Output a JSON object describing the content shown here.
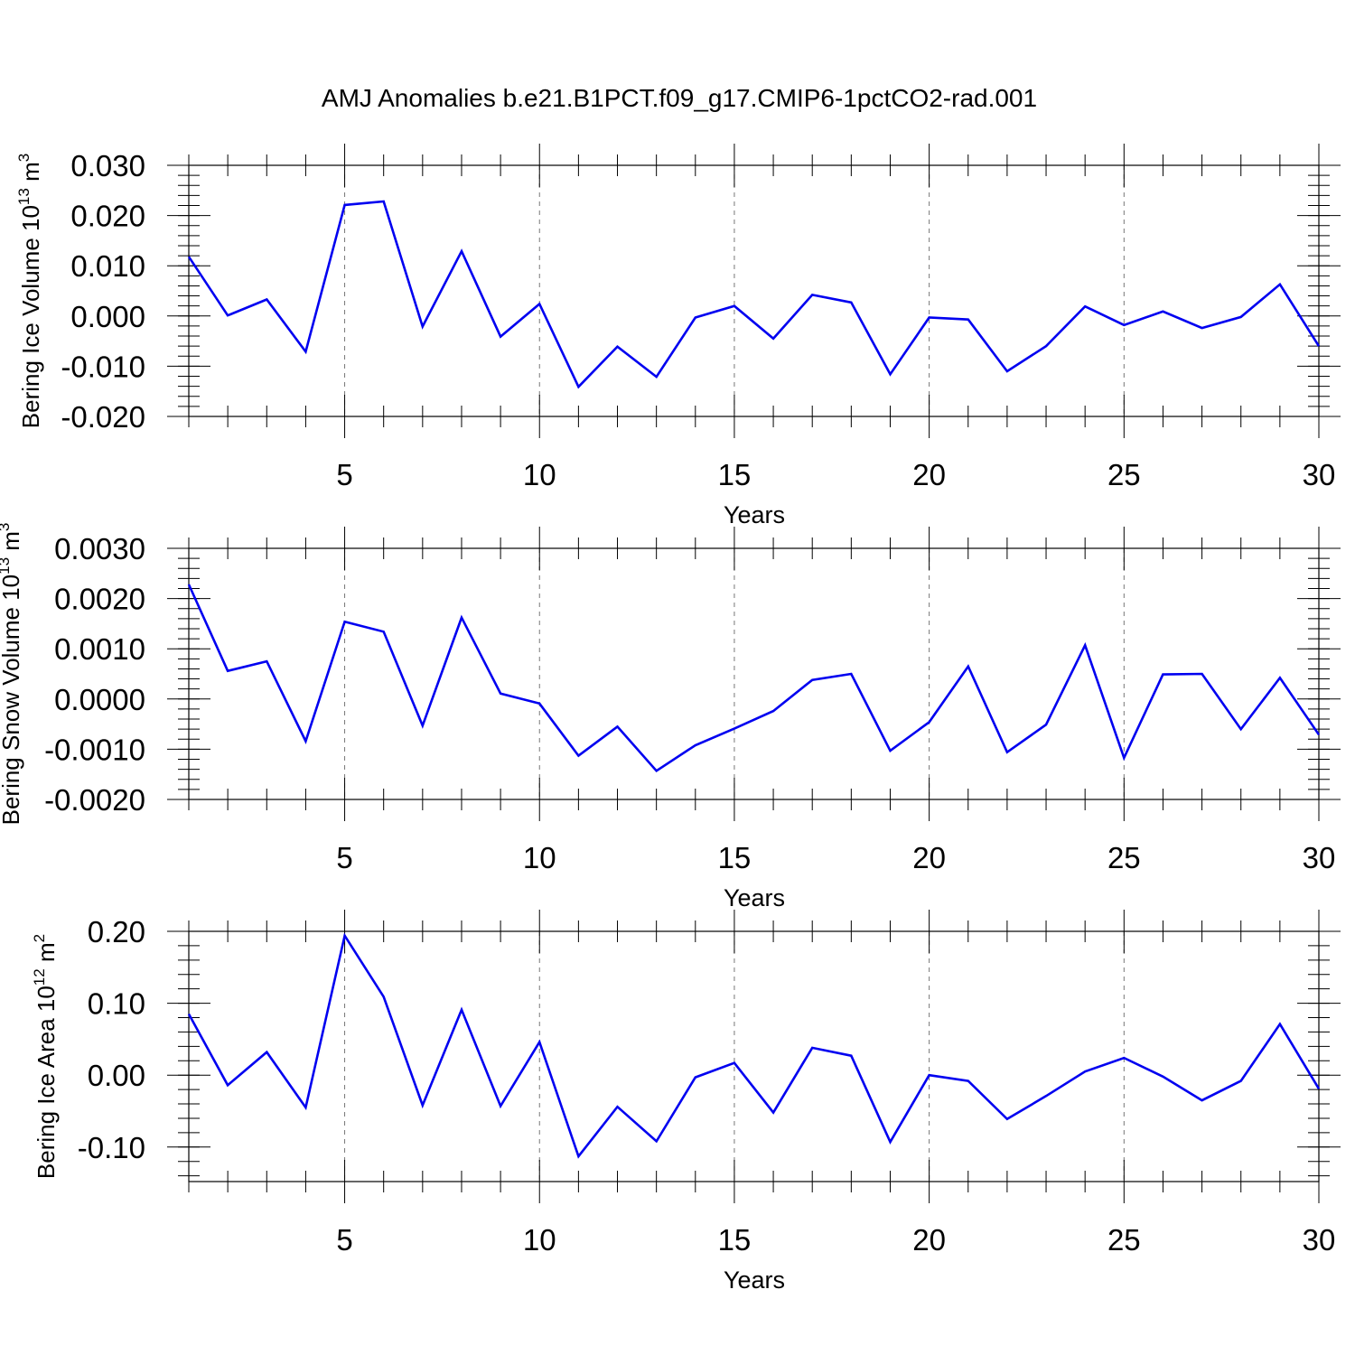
{
  "title": "AMJ Anomalies b.e21.B1PCT.f09_g17.CMIP6-1pctCO2-rad.001",
  "colors": {
    "series": "#0000f0",
    "frame": "#000000",
    "grid": "#777777"
  },
  "chart_data": [
    {
      "type": "line",
      "name": "ice-volume",
      "title": "",
      "xlabel": "Years",
      "ylabel": {
        "main": "Bering Ice Volume 10",
        "exp": "13",
        "unit": " m",
        "unit_exp": "3"
      },
      "xlim": [
        1,
        30
      ],
      "ylim": [
        -0.02,
        0.03
      ],
      "x_ticks": [
        5,
        10,
        15,
        20,
        25,
        30
      ],
      "y_ticks": [
        {
          "v": 0.03,
          "label": "0.030"
        },
        {
          "v": 0.02,
          "label": "0.020"
        },
        {
          "v": 0.01,
          "label": "0.010"
        },
        {
          "v": 0.0,
          "label": "0.000"
        },
        {
          "v": -0.01,
          "label": "-0.010"
        },
        {
          "v": -0.02,
          "label": "-0.020"
        }
      ],
      "y_minor_step": 0.002,
      "grid": "x dashed",
      "x": [
        1,
        2,
        3,
        4,
        5,
        6,
        7,
        8,
        9,
        10,
        11,
        12,
        13,
        14,
        15,
        16,
        17,
        18,
        19,
        20,
        21,
        22,
        23,
        24,
        25,
        26,
        27,
        28,
        29,
        30
      ],
      "series": [
        {
          "name": "Bering Ice Volume",
          "values": [
            0.0118,
            0.0001,
            0.0033,
            -0.0071,
            0.0221,
            0.0228,
            -0.0021,
            0.0129,
            -0.0041,
            0.0024,
            -0.0141,
            -0.0061,
            -0.0121,
            -0.0003,
            0.002,
            -0.0045,
            0.0042,
            0.0027,
            -0.0116,
            -0.0003,
            -0.0007,
            -0.011,
            -0.006,
            0.0019,
            -0.0018,
            0.0009,
            -0.0024,
            -0.0002,
            0.0063,
            -0.006
          ]
        }
      ]
    },
    {
      "type": "line",
      "name": "snow-volume",
      "title": "",
      "xlabel": "Years",
      "ylabel": {
        "main": "Bering Snow Volume 10",
        "exp": "13",
        "unit": " m",
        "unit_exp": "3"
      },
      "xlim": [
        1,
        30
      ],
      "ylim": [
        -0.002,
        0.003
      ],
      "x_ticks": [
        5,
        10,
        15,
        20,
        25,
        30
      ],
      "y_ticks": [
        {
          "v": 0.003,
          "label": "0.0030"
        },
        {
          "v": 0.002,
          "label": "0.0020"
        },
        {
          "v": 0.001,
          "label": "0.0010"
        },
        {
          "v": 0.0,
          "label": "0.0000"
        },
        {
          "v": -0.001,
          "label": "-0.0010"
        },
        {
          "v": -0.002,
          "label": "-0.0020"
        }
      ],
      "y_minor_step": 0.0002,
      "grid": "x dashed",
      "x": [
        1,
        2,
        3,
        4,
        5,
        6,
        7,
        8,
        9,
        10,
        11,
        12,
        13,
        14,
        15,
        16,
        17,
        18,
        19,
        20,
        21,
        22,
        23,
        24,
        25,
        26,
        27,
        28,
        29,
        30
      ],
      "series": [
        {
          "name": "Bering Snow Volume",
          "values": [
            0.00228,
            0.00056,
            0.00075,
            -0.00084,
            0.00154,
            0.00134,
            -0.00053,
            0.00162,
            0.00011,
            -9e-05,
            -0.00113,
            -0.00055,
            -0.00143,
            -0.00092,
            -0.00059,
            -0.00024,
            0.00038,
            0.0005,
            -0.00103,
            -0.00046,
            0.00065,
            -0.00106,
            -0.00051,
            0.00107,
            -0.00117,
            0.00049,
            0.0005,
            -0.0006,
            0.00042,
            -0.00071
          ]
        }
      ]
    },
    {
      "type": "line",
      "name": "ice-area",
      "title": "",
      "xlabel": "Years",
      "ylabel": {
        "main": "Bering Ice Area 10",
        "exp": "12",
        "unit": " m",
        "unit_exp": "2"
      },
      "xlim": [
        1,
        30
      ],
      "ylim": [
        -0.148,
        0.2
      ],
      "x_ticks": [
        5,
        10,
        15,
        20,
        25,
        30
      ],
      "y_ticks": [
        {
          "v": 0.2,
          "label": "0.20"
        },
        {
          "v": 0.1,
          "label": "0.10"
        },
        {
          "v": 0.0,
          "label": "0.00"
        },
        {
          "v": -0.1,
          "label": "-0.10"
        }
      ],
      "y_minor_step": 0.02,
      "grid": "x dashed",
      "x": [
        1,
        2,
        3,
        4,
        5,
        6,
        7,
        8,
        9,
        10,
        11,
        12,
        13,
        14,
        15,
        16,
        17,
        18,
        19,
        20,
        21,
        22,
        23,
        24,
        25,
        26,
        27,
        28,
        29,
        30
      ],
      "series": [
        {
          "name": "Bering Ice Area",
          "values": [
            0.085,
            -0.014,
            0.032,
            -0.045,
            0.194,
            0.109,
            -0.042,
            0.091,
            -0.043,
            0.046,
            -0.113,
            -0.044,
            -0.092,
            -0.003,
            0.017,
            -0.052,
            0.038,
            0.027,
            -0.093,
            0.0,
            -0.008,
            -0.061,
            -0.029,
            0.005,
            0.024,
            -0.002,
            -0.035,
            -0.008,
            0.071,
            -0.019
          ]
        }
      ]
    }
  ]
}
